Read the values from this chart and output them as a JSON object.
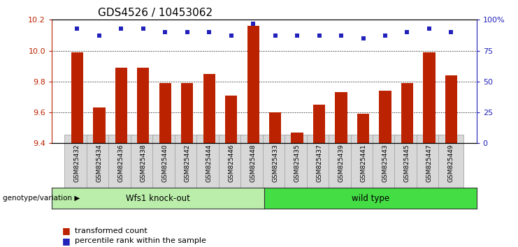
{
  "title": "GDS4526 / 10453062",
  "samples": [
    "GSM825432",
    "GSM825434",
    "GSM825436",
    "GSM825438",
    "GSM825440",
    "GSM825442",
    "GSM825444",
    "GSM825446",
    "GSM825448",
    "GSM825433",
    "GSM825435",
    "GSM825437",
    "GSM825439",
    "GSM825441",
    "GSM825443",
    "GSM825445",
    "GSM825447",
    "GSM825449"
  ],
  "bar_values": [
    9.99,
    9.63,
    9.89,
    9.89,
    9.79,
    9.79,
    9.85,
    9.71,
    10.16,
    9.6,
    9.47,
    9.65,
    9.73,
    9.59,
    9.74,
    9.79,
    9.99,
    9.84
  ],
  "percentile_values": [
    93,
    87,
    93,
    93,
    90,
    90,
    90,
    87,
    97,
    87,
    87,
    87,
    87,
    85,
    87,
    90,
    93,
    90
  ],
  "group1_label": "Wfs1 knock-out",
  "group2_label": "wild type",
  "group1_count": 9,
  "group2_count": 9,
  "ylim_left": [
    9.4,
    10.2
  ],
  "ylim_right": [
    0,
    100
  ],
  "y_ticks_left": [
    9.4,
    9.6,
    9.8,
    10.0,
    10.2
  ],
  "y_ticks_right": [
    0,
    25,
    50,
    75,
    100
  ],
  "y_tick_labels_right": [
    "0",
    "25",
    "50",
    "75",
    "100%"
  ],
  "bar_color": "#bb2200",
  "dot_color": "#2222bb",
  "group1_color": "#bbeeaa",
  "group2_color": "#44dd44",
  "genotype_label": "genotype/variation",
  "legend_bar_label": "transformed count",
  "legend_dot_label": "percentile rank within the sample",
  "title_fontsize": 11,
  "tick_fontsize": 8,
  "xtick_fontsize": 6.5,
  "legend_fontsize": 8
}
